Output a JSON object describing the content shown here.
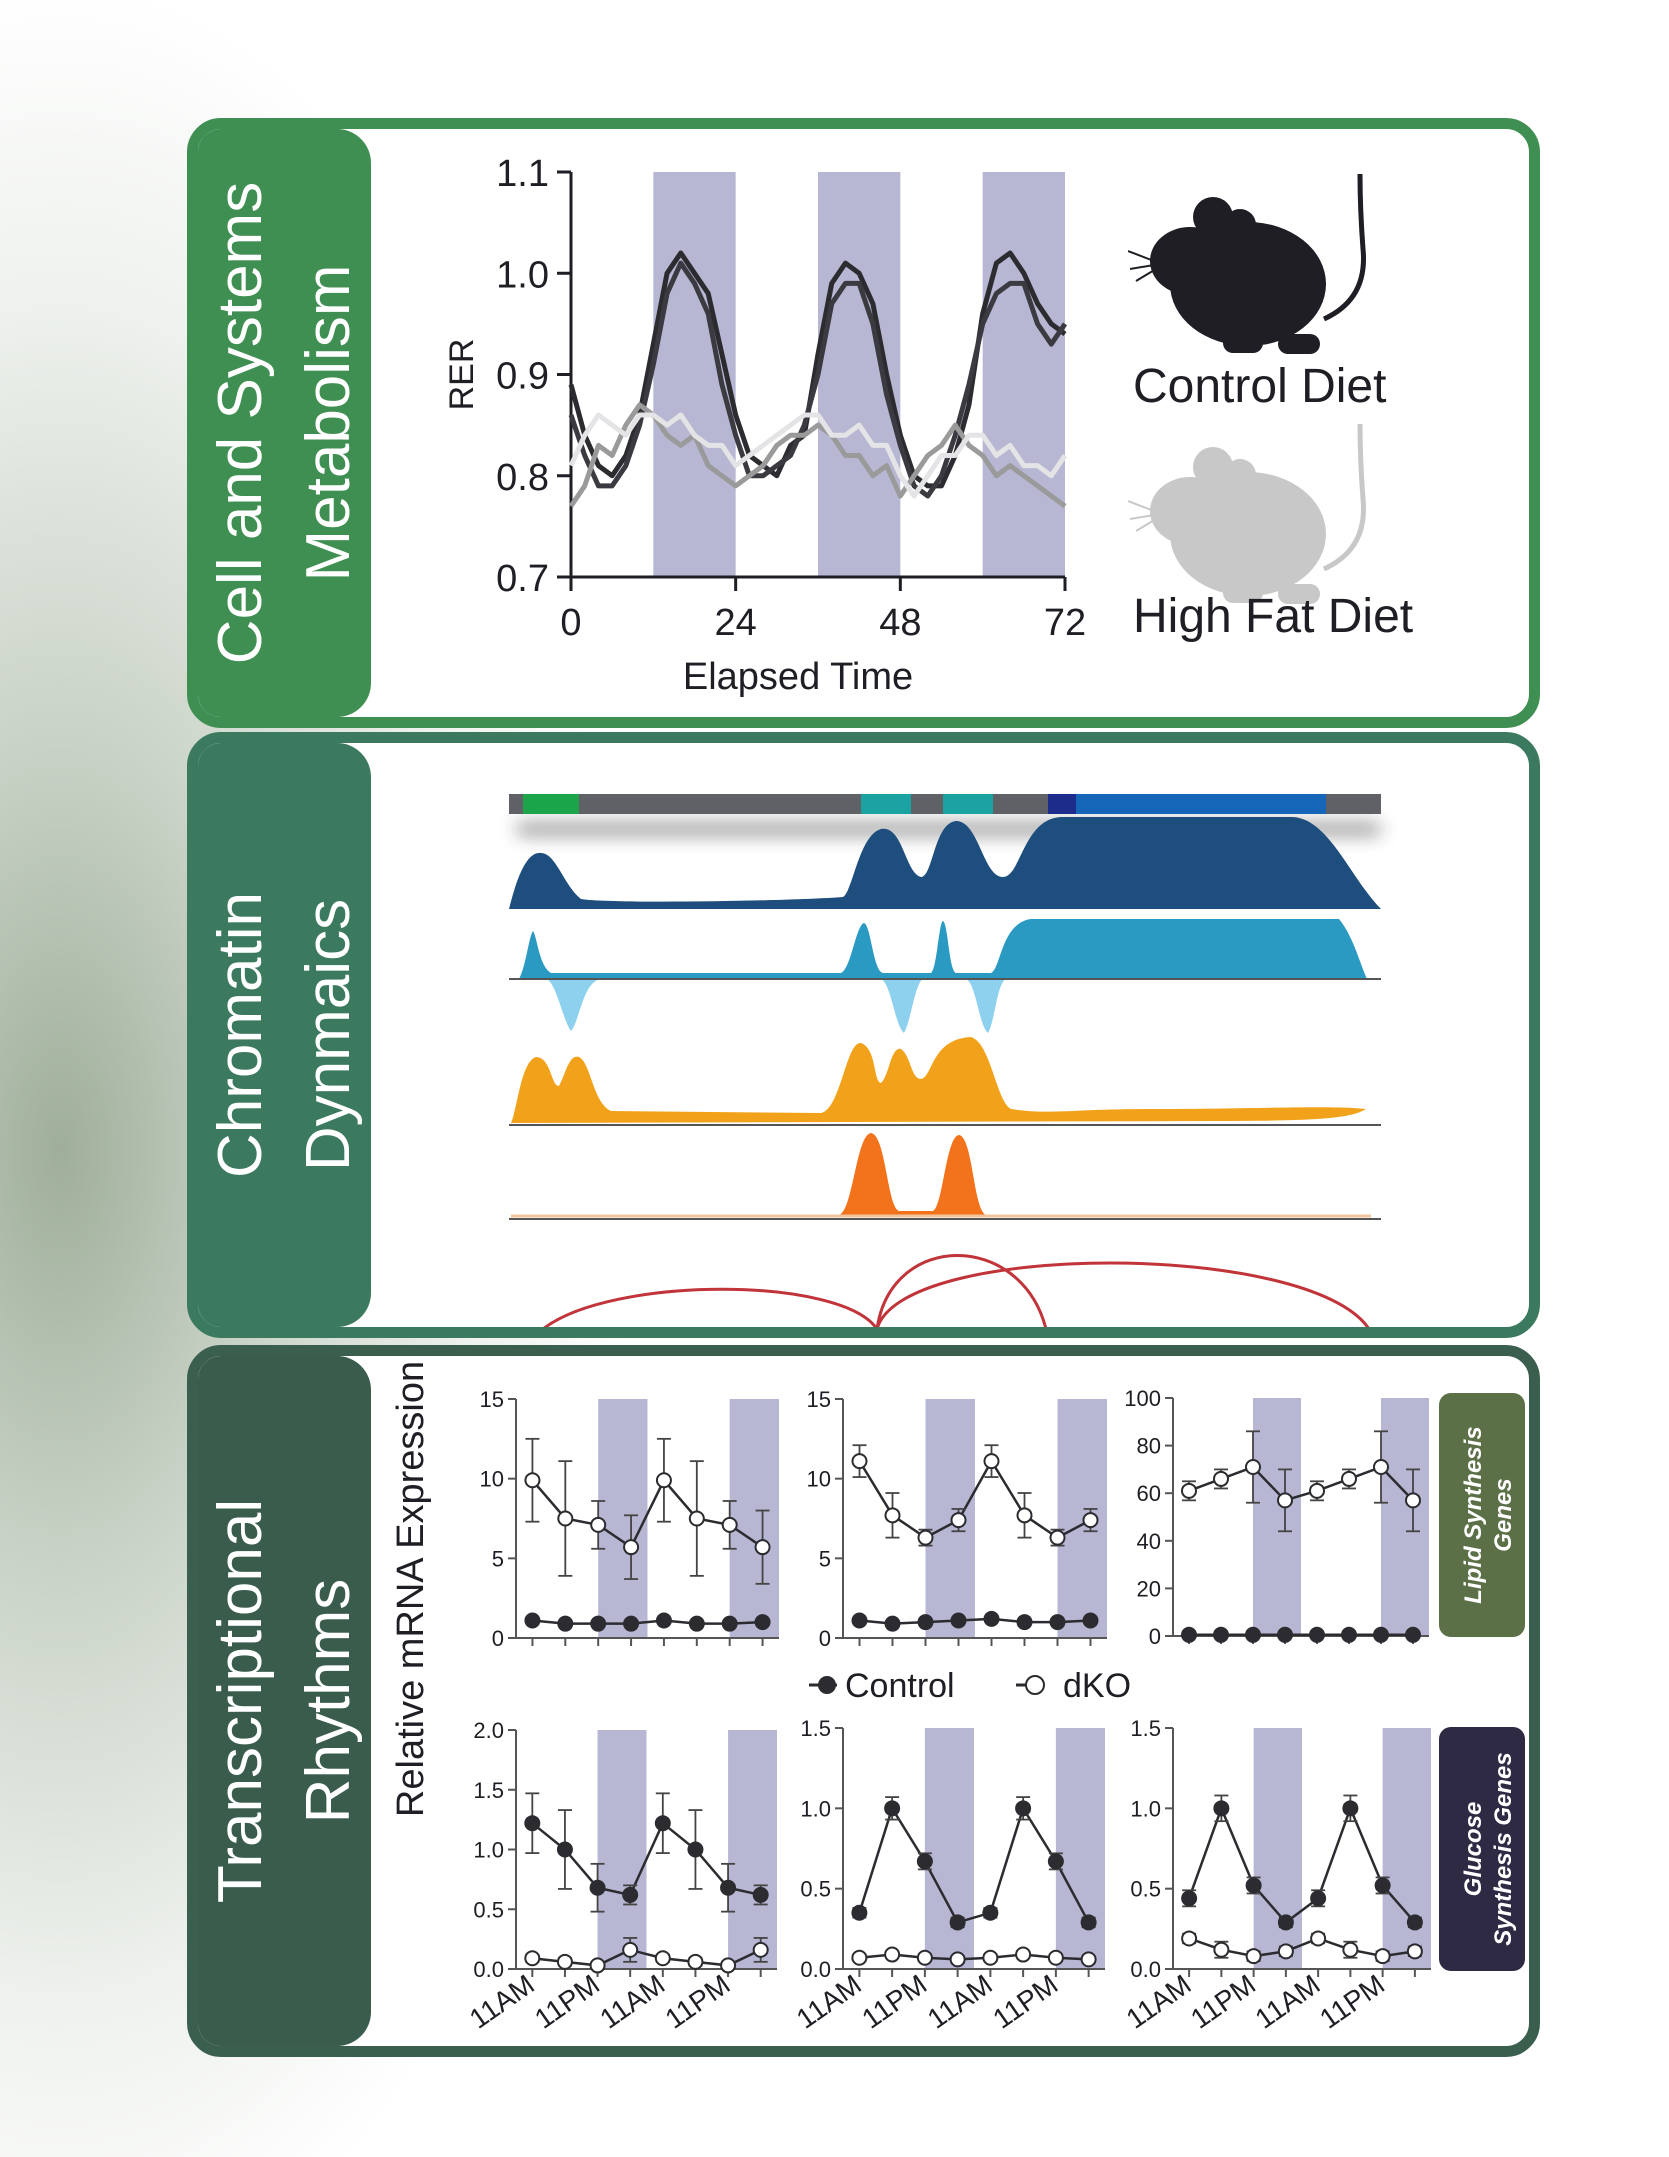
{
  "colors": {
    "panel1": "#3f8f52",
    "panel2": "#3c7a60",
    "panel3": "#3a5c4c",
    "dark_shading": "#b7b7d3",
    "control_line": "#2b2b30",
    "hfd_line": "#9a9a9a",
    "lipid_tag": "#5c7048",
    "glucose_tag": "#2f2a44"
  },
  "panels": {
    "metabolism": {
      "title_lines": [
        "Cell and Systems",
        "Metabolism"
      ],
      "legend": {
        "control": "Control Diet",
        "hfd": "High Fat Diet"
      },
      "icons": [
        "mouse-silhouette-dark",
        "mouse-silhouette-light"
      ]
    },
    "chromatin": {
      "title_lines": [
        "Chromatin",
        "Dynmaics"
      ]
    },
    "transcription": {
      "title_lines": [
        "Transcriptional",
        "Rhythms"
      ],
      "ylabel": "Relative mRNA Expression",
      "legend": {
        "control": "Control",
        "dko": "dKO"
      },
      "lipid_tag": "Lipid Synthesis Genes",
      "glucose_tag": "Glucose Synthesis Genes"
    }
  },
  "chart_data": [
    {
      "type": "line",
      "ylabel": "RER",
      "xlabel": "Elapsed Time",
      "xlim": [
        0,
        72
      ],
      "ylim": [
        0.7,
        1.1
      ],
      "xticks": [
        "0",
        "24",
        "48",
        "72"
      ],
      "yticks": [
        "0.7",
        "0.8",
        "0.9",
        "1.0",
        "1.1"
      ],
      "shaded_ranges": [
        [
          12,
          24
        ],
        [
          36,
          48
        ],
        [
          60,
          72
        ]
      ],
      "x": [
        0,
        2,
        4,
        6,
        8,
        10,
        12,
        14,
        16,
        18,
        20,
        22,
        24,
        26,
        28,
        30,
        32,
        34,
        36,
        38,
        40,
        42,
        44,
        46,
        48,
        50,
        52,
        54,
        56,
        58,
        60,
        62,
        64,
        66,
        68,
        70,
        72
      ],
      "series": [
        {
          "group": "control",
          "values": [
            0.89,
            0.84,
            0.81,
            0.8,
            0.82,
            0.86,
            0.93,
            1.0,
            1.02,
            1.0,
            0.98,
            0.92,
            0.86,
            0.82,
            0.81,
            0.8,
            0.83,
            0.84,
            0.92,
            0.99,
            1.01,
            1.0,
            0.97,
            0.9,
            0.84,
            0.8,
            0.79,
            0.79,
            0.82,
            0.87,
            0.96,
            1.01,
            1.02,
            1.0,
            0.97,
            0.95,
            0.94
          ]
        },
        {
          "group": "control",
          "values": [
            0.86,
            0.82,
            0.79,
            0.79,
            0.81,
            0.85,
            0.91,
            0.98,
            1.01,
            0.99,
            0.96,
            0.89,
            0.84,
            0.8,
            0.8,
            0.81,
            0.82,
            0.85,
            0.9,
            0.97,
            0.99,
            0.99,
            0.95,
            0.88,
            0.83,
            0.79,
            0.78,
            0.8,
            0.84,
            0.89,
            0.95,
            0.98,
            0.99,
            0.99,
            0.95,
            0.93,
            0.95
          ]
        },
        {
          "group": "hfd",
          "values": [
            0.77,
            0.79,
            0.83,
            0.82,
            0.85,
            0.87,
            0.86,
            0.84,
            0.83,
            0.84,
            0.81,
            0.8,
            0.79,
            0.8,
            0.81,
            0.83,
            0.84,
            0.84,
            0.85,
            0.84,
            0.82,
            0.82,
            0.8,
            0.81,
            0.78,
            0.8,
            0.82,
            0.83,
            0.85,
            0.83,
            0.82,
            0.8,
            0.81,
            0.8,
            0.79,
            0.78,
            0.77
          ]
        },
        {
          "group": "hfd",
          "values": [
            0.81,
            0.84,
            0.86,
            0.85,
            0.84,
            0.86,
            0.86,
            0.85,
            0.86,
            0.84,
            0.83,
            0.83,
            0.81,
            0.82,
            0.83,
            0.84,
            0.85,
            0.86,
            0.86,
            0.84,
            0.84,
            0.85,
            0.83,
            0.83,
            0.8,
            0.78,
            0.8,
            0.82,
            0.82,
            0.84,
            0.84,
            0.82,
            0.83,
            0.81,
            0.81,
            0.8,
            0.82
          ]
        }
      ]
    },
    {
      "type": "line",
      "group": "lipid",
      "ylim": [
        0,
        15
      ],
      "yticks": [
        "0",
        "5",
        "10",
        "15"
      ],
      "xticks": [
        "11AM",
        "11PM",
        "11AM",
        "11PM"
      ],
      "series": [
        {
          "name": "Control",
          "values": [
            1.1,
            0.9,
            0.9,
            0.9,
            1.1,
            0.9,
            0.9,
            1.0
          ],
          "errors": [
            0,
            0,
            0,
            0,
            0,
            0,
            0,
            0
          ]
        },
        {
          "name": "dKO",
          "values": [
            9.9,
            7.5,
            7.1,
            5.7,
            9.9,
            7.5,
            7.1,
            5.7
          ],
          "errors": [
            2.6,
            3.6,
            1.5,
            2.0,
            2.6,
            3.6,
            1.5,
            2.3
          ]
        }
      ]
    },
    {
      "type": "line",
      "group": "lipid",
      "ylim": [
        0,
        15
      ],
      "yticks": [
        "0",
        "5",
        "10",
        "15"
      ],
      "xticks": [
        "11AM",
        "11PM",
        "11AM",
        "11PM"
      ],
      "series": [
        {
          "name": "Control",
          "values": [
            1.1,
            0.9,
            1.0,
            1.1,
            1.2,
            1.0,
            1.0,
            1.1
          ],
          "errors": [
            0,
            0,
            0,
            0,
            0,
            0,
            0,
            0
          ]
        },
        {
          "name": "dKO",
          "values": [
            11.1,
            7.7,
            6.3,
            7.4,
            11.1,
            7.7,
            6.3,
            7.4
          ],
          "errors": [
            1.0,
            1.4,
            0.5,
            0.7,
            1.0,
            1.4,
            0.5,
            0.7
          ]
        }
      ]
    },
    {
      "type": "line",
      "group": "lipid",
      "ylim": [
        0,
        100
      ],
      "yticks": [
        "0",
        "20",
        "40",
        "60",
        "80",
        "100"
      ],
      "xticks": [
        "11AM",
        "11PM",
        "11AM",
        "11PM"
      ],
      "series": [
        {
          "name": "Control",
          "values": [
            0.5,
            0.5,
            0.5,
            0.5,
            0.5,
            0.5,
            0.5,
            0.5
          ],
          "errors": [
            0,
            0,
            0,
            0,
            0,
            0,
            0,
            0
          ]
        },
        {
          "name": "dKO",
          "values": [
            61,
            66,
            71,
            57,
            61,
            66,
            71,
            57
          ],
          "errors": [
            4,
            4,
            15,
            13,
            4,
            4,
            15,
            13
          ]
        }
      ]
    },
    {
      "type": "line",
      "group": "glucose",
      "ylim": [
        0,
        2.0
      ],
      "yticks": [
        "0.0",
        "0.5",
        "1.0",
        "1.5",
        "2.0"
      ],
      "xticks": [
        "11AM",
        "11PM",
        "11AM",
        "11PM"
      ],
      "series": [
        {
          "name": "Control",
          "values": [
            1.22,
            1.0,
            0.68,
            0.62,
            1.22,
            1.0,
            0.68,
            0.62
          ],
          "errors": [
            0.25,
            0.33,
            0.2,
            0.08,
            0.25,
            0.33,
            0.2,
            0.08
          ]
        },
        {
          "name": "dKO",
          "values": [
            0.09,
            0.06,
            0.03,
            0.16,
            0.09,
            0.06,
            0.03,
            0.16
          ],
          "errors": [
            0.03,
            0.03,
            0.03,
            0.1,
            0.03,
            0.03,
            0.03,
            0.1
          ]
        }
      ]
    },
    {
      "type": "line",
      "group": "glucose",
      "ylim": [
        0,
        1.5
      ],
      "yticks": [
        "0.0",
        "0.5",
        "1.0",
        "1.5"
      ],
      "xticks": [
        "11AM",
        "11PM",
        "11AM",
        "11PM"
      ],
      "series": [
        {
          "name": "Control",
          "values": [
            0.35,
            1.0,
            0.67,
            0.29,
            0.35,
            1.0,
            0.67,
            0.29
          ],
          "errors": [
            0.03,
            0.07,
            0.05,
            0.03,
            0.03,
            0.07,
            0.05,
            0.03
          ]
        },
        {
          "name": "dKO",
          "values": [
            0.07,
            0.09,
            0.07,
            0.06,
            0.07,
            0.09,
            0.07,
            0.06
          ],
          "errors": [
            0.02,
            0.02,
            0.02,
            0.02,
            0.02,
            0.02,
            0.02,
            0.02
          ]
        }
      ]
    },
    {
      "type": "line",
      "group": "glucose",
      "ylim": [
        0,
        1.5
      ],
      "yticks": [
        "0.0",
        "0.5",
        "1.0",
        "1.5"
      ],
      "xticks": [
        "11AM",
        "11PM",
        "11AM",
        "11PM"
      ],
      "series": [
        {
          "name": "Control",
          "values": [
            0.44,
            1.0,
            0.52,
            0.29,
            0.44,
            1.0,
            0.52,
            0.29
          ],
          "errors": [
            0.05,
            0.08,
            0.05,
            0.03,
            0.05,
            0.08,
            0.05,
            0.03
          ]
        },
        {
          "name": "dKO",
          "values": [
            0.19,
            0.12,
            0.08,
            0.11,
            0.19,
            0.12,
            0.08,
            0.11
          ],
          "errors": [
            0.03,
            0.05,
            0.03,
            0.03,
            0.03,
            0.05,
            0.03,
            0.03
          ]
        }
      ]
    }
  ]
}
